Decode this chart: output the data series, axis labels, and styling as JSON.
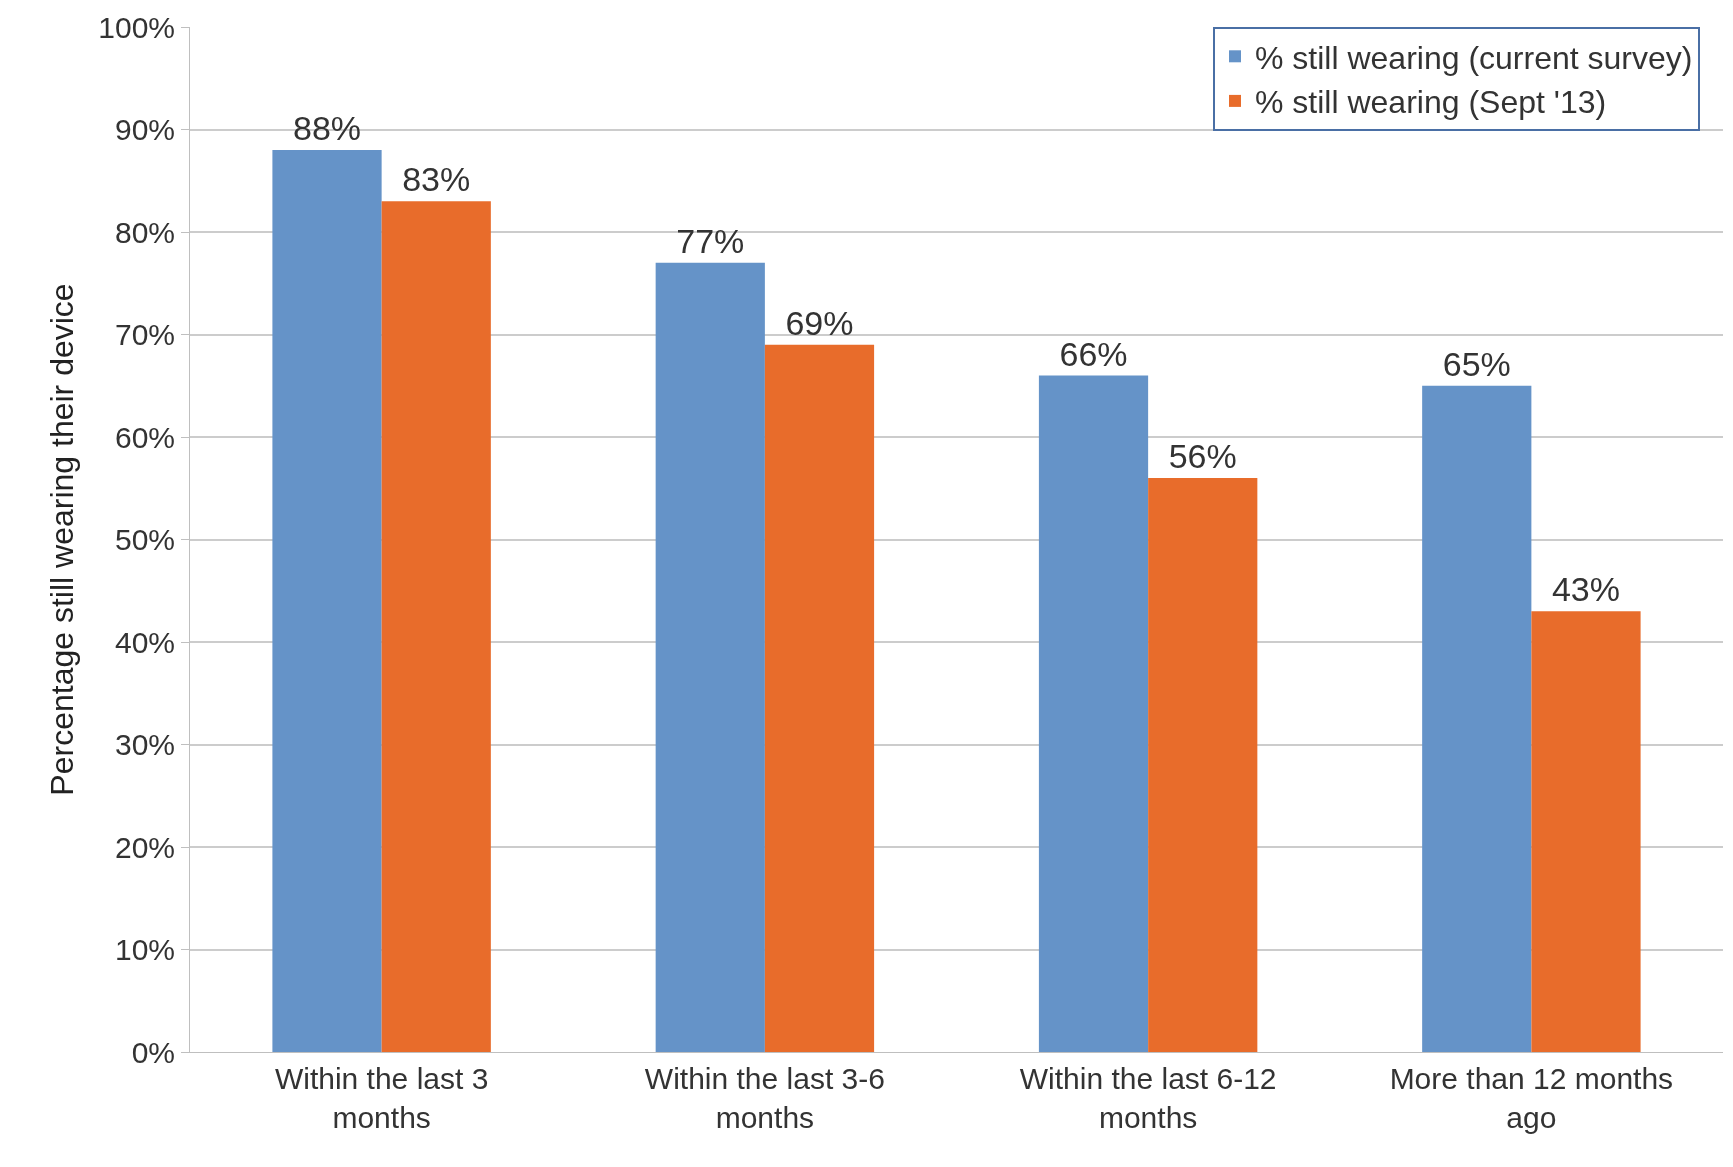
{
  "chart_data": {
    "type": "bar",
    "ylabel": "Percentage still wearing their device",
    "categories": [
      "Within the last 3 months",
      "Within the last 3-6 months",
      "Within the last 6-12 months",
      "More than 12 months ago"
    ],
    "series": [
      {
        "name": "% still wearing (current survey)",
        "color": "#6593c8",
        "values": [
          88,
          77,
          66,
          65
        ],
        "value_labels": [
          "88%",
          "77%",
          "66%",
          "65%"
        ]
      },
      {
        "name": "% still wearing (Sept '13)",
        "color": "#e86c2b",
        "values": [
          83,
          69,
          56,
          43
        ],
        "value_labels": [
          "83%",
          "69%",
          "56%",
          "43%"
        ]
      }
    ],
    "ylim": [
      0,
      100
    ],
    "yticks": [
      {
        "value": 0,
        "label": "0%"
      },
      {
        "value": 10,
        "label": "10%"
      },
      {
        "value": 20,
        "label": "20%"
      },
      {
        "value": 30,
        "label": "30%"
      },
      {
        "value": 40,
        "label": "40%"
      },
      {
        "value": 50,
        "label": "50%"
      },
      {
        "value": 60,
        "label": "60%"
      },
      {
        "value": 70,
        "label": "70%"
      },
      {
        "value": 80,
        "label": "80%"
      },
      {
        "value": 90,
        "label": "90%"
      },
      {
        "value": 100,
        "label": "100%"
      }
    ],
    "grid": "y",
    "legend": "top right"
  }
}
